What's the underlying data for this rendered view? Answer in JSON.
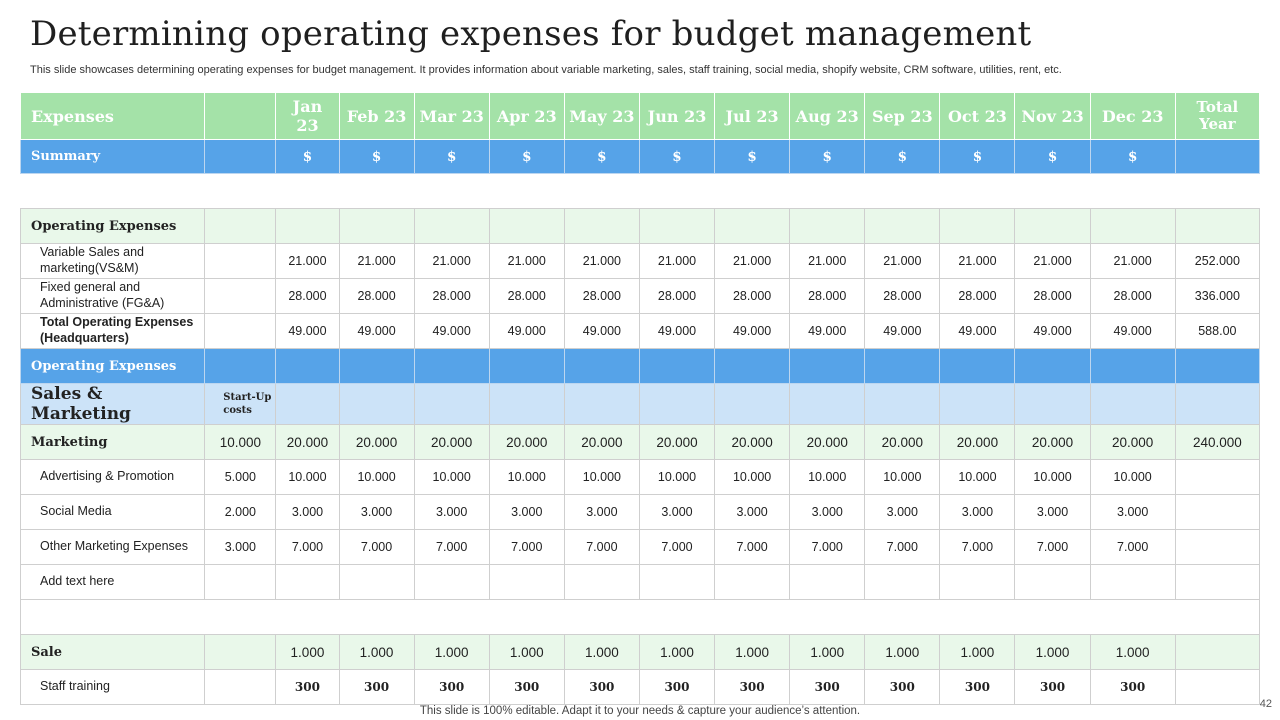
{
  "page": {
    "title": "Determining operating expenses for budget management",
    "subtitle": "This slide showcases determining operating expenses for budget management. It provides information about variable marketing, sales, staff training, social media, shopify website, CRM software, utilities, rent, etc.",
    "footer": "This slide is 100% editable. Adapt it to your needs & capture your audience’s attention.",
    "page_number": "42"
  },
  "colors": {
    "header_green": "#a4e2a8",
    "summary_blue": "#56a3e8",
    "light_green": "#e9f8ea",
    "light_blue": "#cce3f8"
  },
  "table": {
    "header": {
      "label": "Expenses",
      "months": [
        "Jan 23",
        "Feb 23",
        "Mar 23",
        "Apr 23",
        "May 23",
        "Jun 23",
        "Jul 23",
        "Aug 23",
        "Sep 23",
        "Oct 23",
        "Nov 23",
        "Dec 23"
      ],
      "total_line1": "Total",
      "total_line2": "Year"
    },
    "summary": {
      "label": "Summary",
      "symbol": "$"
    },
    "operating": {
      "title": "Operating Expenses",
      "rows": [
        {
          "label": "Variable Sales and marketing(VS&M)",
          "values": [
            "21.000",
            "21.000",
            "21.000",
            "21.000",
            "21.000",
            "21.000",
            "21.000",
            "21.000",
            "21.000",
            "21.000",
            "21.000",
            "21.000"
          ],
          "total": "252.000"
        },
        {
          "label": "Fixed general and Administrative (FG&A)",
          "values": [
            "28.000",
            "28.000",
            "28.000",
            "28.000",
            "28.000",
            "28.000",
            "28.000",
            "28.000",
            "28.000",
            "28.000",
            "28.000",
            "28.000"
          ],
          "total": "336.000"
        },
        {
          "label": "Total Operating Expenses (Headquarters)",
          "values": [
            "49.000",
            "49.000",
            "49.000",
            "49.000",
            "49.000",
            "49.000",
            "49.000",
            "49.000",
            "49.000",
            "49.000",
            "49.000",
            "49.000"
          ],
          "total": "588.00"
        }
      ]
    },
    "operating_band": "Operating Expenses",
    "sales_marketing": {
      "label": "Sales & Marketing",
      "startup": "Start-Up costs"
    },
    "marketing": {
      "label": "Marketing",
      "startup": "10.000",
      "values": [
        "20.000",
        "20.000",
        "20.000",
        "20.000",
        "20.000",
        "20.000",
        "20.000",
        "20.000",
        "20.000",
        "20.000",
        "20.000",
        "20.000"
      ],
      "total": "240.000"
    },
    "marketing_rows": [
      {
        "label": "Advertising & Promotion",
        "startup": "5.000",
        "values": [
          "10.000",
          "10.000",
          "10.000",
          "10.000",
          "10.000",
          "10.000",
          "10.000",
          "10.000",
          "10.000",
          "10.000",
          "10.000",
          "10.000"
        ]
      },
      {
        "label": "Social Media",
        "startup": "2.000",
        "values": [
          "3.000",
          "3.000",
          "3.000",
          "3.000",
          "3.000",
          "3.000",
          "3.000",
          "3.000",
          "3.000",
          "3.000",
          "3.000",
          "3.000"
        ]
      },
      {
        "label": "Other Marketing Expenses",
        "startup": "3.000",
        "values": [
          "7.000",
          "7.000",
          "7.000",
          "7.000",
          "7.000",
          "7.000",
          "7.000",
          "7.000",
          "7.000",
          "7.000",
          "7.000",
          "7.000"
        ]
      },
      {
        "label": "Add text here",
        "startup": "",
        "values": [
          "",
          "",
          "",
          "",
          "",
          "",
          "",
          "",
          "",
          "",
          "",
          ""
        ]
      }
    ],
    "sale": {
      "label": "Sale",
      "values": [
        "1.000",
        "1.000",
        "1.000",
        "1.000",
        "1.000",
        "1.000",
        "1.000",
        "1.000",
        "1.000",
        "1.000",
        "1.000",
        "1.000"
      ]
    },
    "staff": {
      "label": "Staff training",
      "values": [
        "300",
        "300",
        "300",
        "300",
        "300",
        "300",
        "300",
        "300",
        "300",
        "300",
        "300",
        "300"
      ]
    }
  }
}
